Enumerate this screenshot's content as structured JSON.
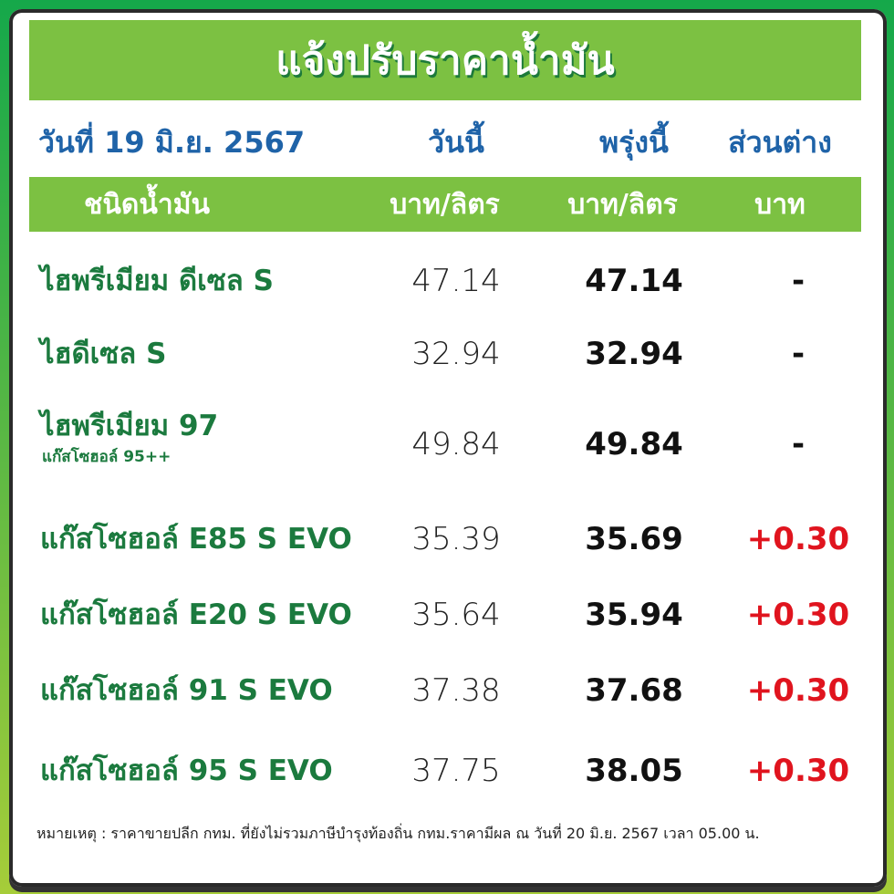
{
  "title": "แจ้งปรับราคาน้ำมัน",
  "header": {
    "date": "วันที่ 19 มิ.ย. 2567",
    "today": "วันนี้",
    "tomorrow": "พรุ่งนี้",
    "diff": "ส่วนต่าง"
  },
  "subheader": {
    "type": "ชนิดน้ำมัน",
    "today_unit": "บาท/ลิตร",
    "tomorrow_unit": "บาท/ลิตร",
    "diff_unit": "บาท"
  },
  "rows": [
    {
      "name": "ไฮพรีเมียม ดีเซล S",
      "today": "47.14",
      "tomorrow": "47.14",
      "diff": "-"
    },
    {
      "name": "ไฮดีเซล S",
      "today": "32.94",
      "tomorrow": "32.94",
      "diff": "-"
    },
    {
      "name": "ไฮพรีเมียม 97",
      "subname": "แก๊สโซฮอล์ 95++",
      "today": "49.84",
      "tomorrow": "49.84",
      "diff": "-"
    },
    {
      "name": "แก๊สโซฮอล์ E85 S EVO",
      "today": "35.39",
      "tomorrow": "35.69",
      "diff": "+0.30"
    },
    {
      "name": "แก๊สโซฮอล์ E20 S EVO",
      "today": "35.64",
      "tomorrow": "35.94",
      "diff": "+0.30"
    },
    {
      "name": "แก๊สโซฮอล์ 91 S EVO",
      "today": "37.38",
      "tomorrow": "37.68",
      "diff": "+0.30"
    },
    {
      "name": "แก๊สโซฮอล์ 95 S EVO",
      "today": "37.75",
      "tomorrow": "38.05",
      "diff": "+0.30"
    }
  ],
  "note": "หมายเหตุ :  ราคาขายปลีก กทม. ที่ยังไม่รวมภาษีบำรุงท้องถิ่น  กทม.ราคามีผล ณ วันที่ 20 มิ.ย. 2567 เวลา 05.00 น.",
  "colors": {
    "green_bar": "#7cc142",
    "blue_header": "#1f63a8",
    "name_green": "#1b7a3e",
    "increase_red": "#e0141e"
  }
}
